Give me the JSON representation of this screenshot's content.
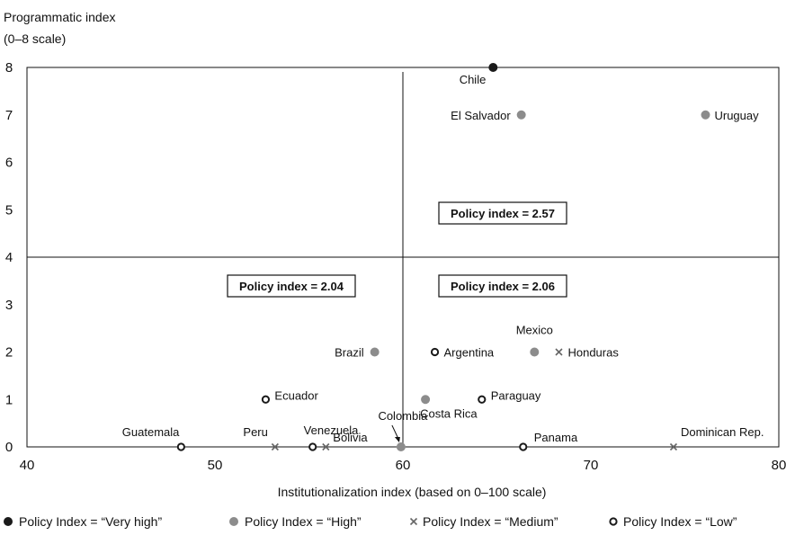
{
  "chart_data": {
    "type": "scatter",
    "ylabel_line1": "Programmatic index",
    "ylabel_line2": "(0–8 scale)",
    "xlabel": "Institutionalization index (based on 0–100 scale)",
    "xlim": [
      40,
      80
    ],
    "ylim": [
      0,
      8
    ],
    "xticks": [
      40,
      50,
      60,
      70,
      80
    ],
    "yticks": [
      0,
      1,
      2,
      3,
      4,
      5,
      6,
      7,
      8
    ],
    "reference_lines": {
      "x": 60,
      "y": 4
    },
    "categories": {
      "very_high": {
        "label": "Policy Index = “Very high”",
        "color": "#1a1a1a"
      },
      "high": {
        "label": "Policy Index = “High”",
        "color": "#8c8c8c"
      },
      "medium": {
        "label": "Policy Index = “Medium”",
        "color": "#666666"
      },
      "low": {
        "label": "Policy Index = “Low”",
        "color": "#1a1a1a"
      }
    },
    "points": [
      {
        "country": "Chile",
        "x": 64.8,
        "y": 8,
        "category": "very_high"
      },
      {
        "country": "El Salvador",
        "x": 66.3,
        "y": 7,
        "category": "high"
      },
      {
        "country": "Uruguay",
        "x": 76.1,
        "y": 7,
        "category": "high"
      },
      {
        "country": "Brazil",
        "x": 58.5,
        "y": 2,
        "category": "high"
      },
      {
        "country": "Argentina",
        "x": 61.7,
        "y": 2,
        "category": "low"
      },
      {
        "country": "Mexico",
        "x": 67.0,
        "y": 2,
        "category": "high"
      },
      {
        "country": "Honduras",
        "x": 68.3,
        "y": 2,
        "category": "medium"
      },
      {
        "country": "Ecuador",
        "x": 52.7,
        "y": 1,
        "category": "low"
      },
      {
        "country": "Costa Rica",
        "x": 61.2,
        "y": 1,
        "category": "high"
      },
      {
        "country": "Paraguay",
        "x": 64.2,
        "y": 1,
        "category": "low"
      },
      {
        "country": "Guatemala",
        "x": 48.2,
        "y": 0,
        "category": "low"
      },
      {
        "country": "Peru",
        "x": 53.2,
        "y": 0,
        "category": "medium"
      },
      {
        "country": "Venezuela",
        "x": 55.2,
        "y": 0,
        "category": "low"
      },
      {
        "country": "Bolivia",
        "x": 55.9,
        "y": 0,
        "category": "medium"
      },
      {
        "country": "Colombia",
        "x": 59.9,
        "y": 0,
        "category": "high"
      },
      {
        "country": "Panama",
        "x": 66.4,
        "y": 0,
        "category": "low"
      },
      {
        "country": "Dominican Rep.",
        "x": 74.4,
        "y": 0,
        "category": "medium"
      }
    ],
    "annotations": [
      {
        "text": "Policy index = 2.57",
        "quadrant": "upper-right"
      },
      {
        "text": "Policy index = 2.04",
        "quadrant": "lower-left"
      },
      {
        "text": "Policy index = 2.06",
        "quadrant": "lower-right"
      }
    ],
    "legend_position": "bottom"
  }
}
